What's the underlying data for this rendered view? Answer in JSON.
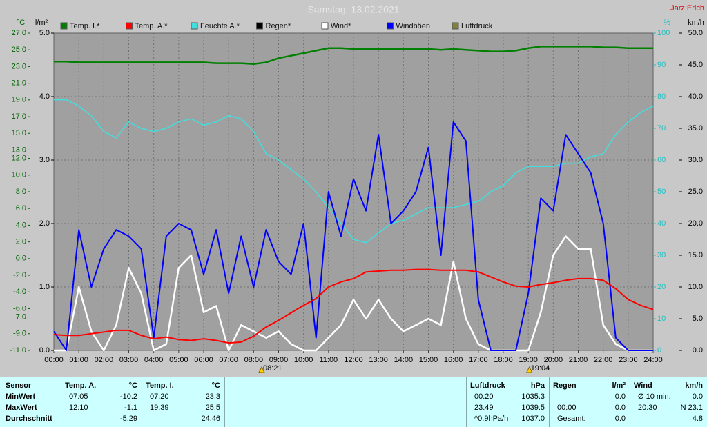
{
  "chart_data": {
    "type": "line",
    "title": "Samstag, 13.02.2021",
    "author": "Jarz Erich",
    "y_label": "°C",
    "y2_label": "l/m²",
    "y3_label": "%",
    "y4_label": "km/h",
    "ylim": [
      -11,
      27
    ],
    "yticks": [
      {
        "value": 27,
        "label": "27.0"
      },
      {
        "value": 25,
        "label": "25.0"
      },
      {
        "value": 23,
        "label": "23.0"
      },
      {
        "value": 21,
        "label": "21.0"
      },
      {
        "value": 19,
        "label": "19.0"
      },
      {
        "value": 17,
        "label": "17.0"
      },
      {
        "value": 15,
        "label": "15.0"
      },
      {
        "value": 13,
        "label": "13.0"
      },
      {
        "value": 12,
        "label": "12.0"
      },
      {
        "value": 10,
        "label": "10.0"
      },
      {
        "value": 8,
        "label": "8.0"
      },
      {
        "value": 6,
        "label": "6.0"
      },
      {
        "value": 4,
        "label": "4.0"
      },
      {
        "value": 2,
        "label": "2.0"
      },
      {
        "value": 0,
        "label": "0.0"
      },
      {
        "value": -2,
        "label": "-2.0"
      },
      {
        "value": -4,
        "label": "-4.0"
      },
      {
        "value": -6,
        "label": "-6.0"
      },
      {
        "value": -7,
        "label": "-7.0"
      },
      {
        "value": -9,
        "label": "-9.0"
      },
      {
        "value": -11,
        "label": "-11.0"
      }
    ],
    "y2lim": [
      0,
      5
    ],
    "y2ticks": [
      {
        "value": 0,
        "label": "0.0"
      },
      {
        "value": 1,
        "label": "1.0"
      },
      {
        "value": 2,
        "label": "2.0"
      },
      {
        "value": 3,
        "label": "3.0"
      },
      {
        "value": 4,
        "label": "4.0"
      },
      {
        "value": 5,
        "label": "5.0"
      }
    ],
    "y3lim": [
      0,
      100
    ],
    "y3ticks": [
      0,
      10,
      20,
      30,
      40,
      50,
      60,
      70,
      80,
      90,
      100
    ],
    "y4lim": [
      0,
      50
    ],
    "y4ticks": [
      {
        "value": 0,
        "label": "0.0"
      },
      {
        "value": 5,
        "label": "5.0"
      },
      {
        "value": 10,
        "label": "10.0"
      },
      {
        "value": 15,
        "label": "15.0"
      },
      {
        "value": 20,
        "label": "20.0"
      },
      {
        "value": 25,
        "label": "25.0"
      },
      {
        "value": 30,
        "label": "30.0"
      },
      {
        "value": 35,
        "label": "35.0"
      },
      {
        "value": 40,
        "label": "40.0"
      },
      {
        "value": 45,
        "label": "45.0"
      },
      {
        "value": 50,
        "label": "50.0"
      }
    ],
    "xlim": [
      0,
      24
    ],
    "xticks": [
      {
        "value": 0,
        "label": "00:00"
      },
      {
        "value": 1,
        "label": "01:00"
      },
      {
        "value": 2,
        "label": "02:00"
      },
      {
        "value": 3,
        "label": "03:00"
      },
      {
        "value": 4,
        "label": "04:00"
      },
      {
        "value": 5,
        "label": "05:00"
      },
      {
        "value": 6,
        "label": "06:00"
      },
      {
        "value": 7,
        "label": "07:00"
      },
      {
        "value": 8,
        "label": "08:00"
      },
      {
        "value": 9,
        "label": "09:00"
      },
      {
        "value": 10,
        "label": "10:00"
      },
      {
        "value": 11,
        "label": "11:00"
      },
      {
        "value": 12,
        "label": "12:00"
      },
      {
        "value": 13,
        "label": "13:00"
      },
      {
        "value": 14,
        "label": "14:00"
      },
      {
        "value": 15,
        "label": "15:00"
      },
      {
        "value": 16,
        "label": "16:00"
      },
      {
        "value": 17,
        "label": "17:00"
      },
      {
        "value": 18,
        "label": "18:00"
      },
      {
        "value": 19,
        "label": "19:00"
      },
      {
        "value": 20,
        "label": "20:00"
      },
      {
        "value": 21,
        "label": "21:00"
      },
      {
        "value": 22,
        "label": "22:00"
      },
      {
        "value": 23,
        "label": "23:00"
      },
      {
        "value": 24,
        "label": "24:00"
      }
    ],
    "grid": true,
    "sun_events": [
      {
        "value": 8.35,
        "label": "08:21"
      },
      {
        "value": 19.07,
        "label": "19:04"
      }
    ],
    "x": [
      0,
      0.5,
      1,
      1.5,
      2,
      2.5,
      3,
      3.5,
      4,
      4.5,
      5,
      5.5,
      6,
      6.5,
      7,
      7.5,
      8,
      8.5,
      9,
      9.5,
      10,
      10.5,
      11,
      11.5,
      12,
      12.5,
      13,
      13.5,
      14,
      14.5,
      15,
      15.5,
      16,
      16.5,
      17,
      17.5,
      18,
      18.5,
      19,
      19.5,
      20,
      20.5,
      21,
      21.5,
      22,
      22.5,
      23,
      23.5,
      24
    ],
    "series": [
      {
        "name": "Temp. I.*",
        "color": "#008000",
        "axis": "y",
        "width": 2.5,
        "values": [
          23.6,
          23.6,
          23.5,
          23.5,
          23.5,
          23.5,
          23.5,
          23.5,
          23.5,
          23.5,
          23.5,
          23.5,
          23.5,
          23.4,
          23.4,
          23.4,
          23.3,
          23.5,
          24.0,
          24.3,
          24.6,
          24.9,
          25.2,
          25.2,
          25.1,
          25.1,
          25.1,
          25.1,
          25.1,
          25.1,
          25.1,
          25.0,
          25.1,
          25.0,
          24.9,
          24.8,
          24.8,
          24.9,
          25.2,
          25.4,
          25.4,
          25.4,
          25.4,
          25.4,
          25.3,
          25.3,
          25.2,
          25.2,
          25.2
        ]
      },
      {
        "name": "Temp. A.*",
        "color": "#ff0000",
        "axis": "y",
        "width": 2,
        "values": [
          -9.1,
          -9.2,
          -9.2,
          -9.0,
          -8.8,
          -8.6,
          -8.6,
          -9.2,
          -9.6,
          -9.4,
          -9.7,
          -9.8,
          -9.6,
          -9.8,
          -10.1,
          -10.0,
          -9.3,
          -8.2,
          -7.4,
          -6.5,
          -5.6,
          -4.8,
          -3.4,
          -2.8,
          -2.4,
          -1.6,
          -1.5,
          -1.4,
          -1.4,
          -1.3,
          -1.3,
          -1.4,
          -1.4,
          -1.4,
          -1.6,
          -2.2,
          -2.8,
          -3.3,
          -3.4,
          -3.1,
          -2.9,
          -2.6,
          -2.4,
          -2.4,
          -2.6,
          -3.6,
          -4.9,
          -5.6,
          -6.1
        ]
      },
      {
        "name": "Feuchte A.*",
        "color": "#40e0e0",
        "axis": "y3",
        "width": 1.5,
        "values": [
          79,
          79,
          77,
          74,
          69,
          67,
          72,
          70,
          69,
          70,
          72,
          73,
          71,
          72,
          74,
          73,
          69,
          62,
          60,
          57,
          54,
          50,
          45,
          40,
          35,
          34,
          37,
          40,
          41,
          43,
          45,
          45,
          45,
          46,
          47,
          50,
          52,
          56,
          58,
          58,
          58,
          59,
          59,
          61,
          62,
          68,
          72,
          75,
          77
        ]
      },
      {
        "name": "Regen*",
        "color": "#000000"
      },
      {
        "name": "Wind*",
        "color": "#ffffff",
        "axis": "y4",
        "width": 2.5,
        "values": [
          0,
          0,
          10,
          3,
          0,
          4,
          13,
          9,
          0,
          1,
          13,
          15,
          6,
          7,
          0,
          4,
          3,
          2,
          3,
          1,
          0,
          0,
          2,
          4,
          8,
          5,
          8,
          5,
          3,
          4,
          5,
          4,
          14,
          5,
          1,
          0,
          0,
          0,
          0,
          6,
          15,
          18,
          16,
          16,
          4,
          1,
          0,
          0,
          0
        ]
      },
      {
        "name": "Windböen",
        "color": "#0000ff",
        "axis": "y4",
        "width": 2,
        "values": [
          3,
          0,
          19,
          10,
          16,
          19,
          18,
          16,
          2,
          18,
          20,
          19,
          12,
          19,
          9,
          18,
          10,
          19,
          14,
          12,
          20,
          2,
          25,
          18,
          27,
          22,
          34,
          20,
          22,
          25,
          32,
          15,
          36,
          33,
          8,
          0,
          0,
          0,
          9,
          24,
          22,
          34,
          31,
          28,
          20,
          2,
          0,
          0,
          0
        ]
      },
      {
        "name": "Luftdruck",
        "color": "#808040"
      }
    ]
  },
  "table": {
    "columns": [
      {
        "header": "Sensor",
        "cells": [
          "MinWert",
          "MaxWert",
          "Durchschnitt"
        ]
      },
      {
        "header": "Temp. A.",
        "unit": "°C",
        "times": [
          "07:05",
          "12:10",
          null
        ],
        "values": [
          "-10.2",
          "-1.1",
          "-5.29"
        ]
      },
      {
        "header": "Temp. I.",
        "unit": "°C",
        "times": [
          "07:20",
          "19:39",
          null
        ],
        "values": [
          "23.3",
          "25.5",
          "24.46"
        ]
      },
      {
        "header": "Luftdruck",
        "unit": "hPa",
        "times": [
          "00:20",
          "23:49",
          "^0.9hPa/h"
        ],
        "values": [
          "1035.3",
          "1039.5",
          "1037.0"
        ]
      },
      {
        "header": "Regen",
        "unit": "l/m²",
        "times": [
          null,
          "00:00",
          "Gesamt:"
        ],
        "values": [
          "0.0",
          "0.0",
          "0.0"
        ]
      },
      {
        "header": "Wind",
        "unit": "km/h",
        "times": [
          "Ø 10 min.",
          "20:30",
          null
        ],
        "values": [
          "0.0",
          "N 23.1",
          "4.8"
        ]
      }
    ]
  }
}
